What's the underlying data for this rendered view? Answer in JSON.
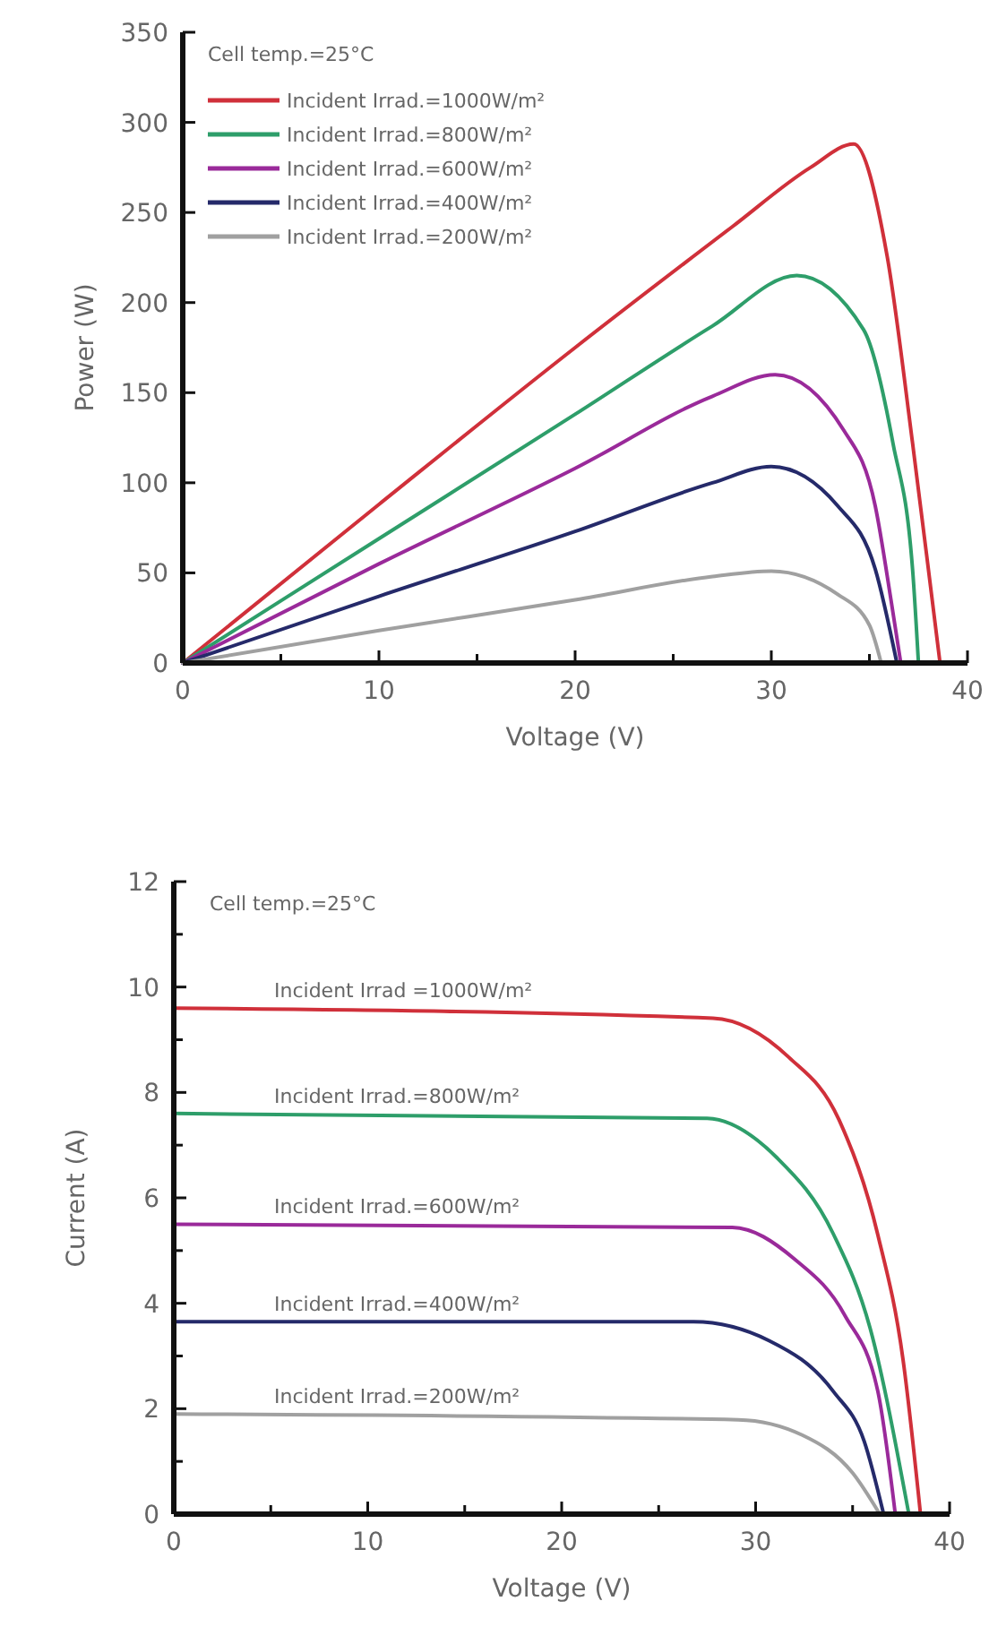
{
  "chart_data": [
    {
      "type": "line",
      "xlabel": "Voltage (V)",
      "ylabel": "Power (W)",
      "xlim": [
        0,
        40
      ],
      "ylim": [
        0,
        350
      ],
      "xticks": [
        0,
        {
          "value": 5,
          "label": null
        },
        10,
        {
          "value": 15,
          "label": null
        },
        20,
        {
          "value": 25,
          "label": null
        },
        30,
        {
          "value": 35,
          "label": null
        },
        40
      ],
      "yticks": [
        0,
        50,
        100,
        150,
        200,
        250,
        300,
        350
      ],
      "legend": "top left",
      "legend_title": "Cell temp.=25°C",
      "series": [
        {
          "name": "Incident Irrad.=1000W/m²",
          "color": "#d0303a",
          "x": [
            0,
            10,
            20,
            28,
            32,
            34.2,
            35.9,
            37.2,
            38.2,
            38.6
          ],
          "values": [
            0,
            88,
            175,
            242,
            275,
            288,
            226,
            122,
            35,
            0
          ]
        },
        {
          "name": "Incident Irrad.=800W/m²",
          "color": "#2e9e6a",
          "x": [
            0,
            10,
            20,
            27,
            31.3,
            34.7,
            36.2,
            37.2,
            37.5
          ],
          "values": [
            0,
            69,
            138,
            187,
            215,
            185,
            122,
            52,
            0
          ]
        },
        {
          "name": "Incident Irrad.=600W/m²",
          "color": "#9a2a9a",
          "x": [
            0,
            10,
            20,
            27,
            30.2,
            33.7,
            35.3,
            36.1,
            36.6
          ],
          "values": [
            0,
            55,
            108,
            148,
            160,
            129,
            87,
            35,
            0
          ]
        },
        {
          "name": "Incident Irrad.=400W/m²",
          "color": "#252a6a",
          "x": [
            0,
            10,
            20,
            27,
            30,
            33.4,
            35.3,
            36.4
          ],
          "values": [
            0,
            37,
            73,
            100,
            109,
            87,
            52,
            0
          ]
        },
        {
          "name": "Incident Irrad.=200W/m²",
          "color": "#a0a0a0",
          "x": [
            0,
            10,
            20,
            27,
            30,
            33.4,
            35,
            35.6
          ],
          "values": [
            0,
            18,
            35,
            48,
            51,
            38,
            21,
            0
          ]
        }
      ]
    },
    {
      "type": "line",
      "xlabel": "Voltage (V)",
      "ylabel": "Current (A)",
      "xlim": [
        0,
        40
      ],
      "ylim": [
        0,
        12
      ],
      "xticks": [
        0,
        {
          "value": 5,
          "label": null
        },
        10,
        {
          "value": 15,
          "label": null
        },
        20,
        {
          "value": 25,
          "label": null
        },
        30,
        {
          "value": 35,
          "label": null
        },
        40
      ],
      "yticks": [
        0,
        {
          "value": 1,
          "label": null
        },
        2,
        {
          "value": 3,
          "label": null
        },
        4,
        {
          "value": 5,
          "label": null
        },
        6,
        {
          "value": 7,
          "label": null
        },
        8,
        {
          "value": 9,
          "label": null
        },
        10,
        {
          "value": 11,
          "label": null
        },
        12
      ],
      "annotations": [
        "Cell temp.=25°C"
      ],
      "series": [
        {
          "name": "Incident Irrad =1000W/m²",
          "color": "#d0303a",
          "x": [
            0,
            27.8,
            31.7,
            34.3,
            36.3,
            37.6,
            38.5
          ],
          "values": [
            9.6,
            9.41,
            8.67,
            7.48,
            5.3,
            2.93,
            0
          ]
        },
        {
          "name": "Incident Irrad.=800W/m²",
          "color": "#2e9e6a",
          "x": [
            0,
            27.5,
            31.1,
            34,
            35.9,
            37.9
          ],
          "values": [
            7.6,
            7.51,
            6.76,
            5.32,
            3.53,
            0
          ]
        },
        {
          "name": "Incident Irrad.=600W/m²",
          "color": "#9a2a9a",
          "x": [
            0,
            28.8,
            32,
            34.6,
            36.3,
            37.2
          ],
          "values": [
            5.5,
            5.44,
            4.84,
            3.77,
            2.33,
            0
          ]
        },
        {
          "name": "Incident Irrad.=400W/m²",
          "color": "#252a6a",
          "x": [
            0,
            26.8,
            30.7,
            34,
            35.6,
            36.6
          ],
          "values": [
            3.65,
            3.65,
            3.29,
            2.33,
            1.38,
            0
          ]
        },
        {
          "name": "Incident Irrad.=200W/m²",
          "color": "#a0a0a0",
          "x": [
            0,
            29.1,
            32.4,
            35,
            36.4
          ],
          "values": [
            1.9,
            1.79,
            1.5,
            0.78,
            0
          ]
        }
      ]
    }
  ]
}
